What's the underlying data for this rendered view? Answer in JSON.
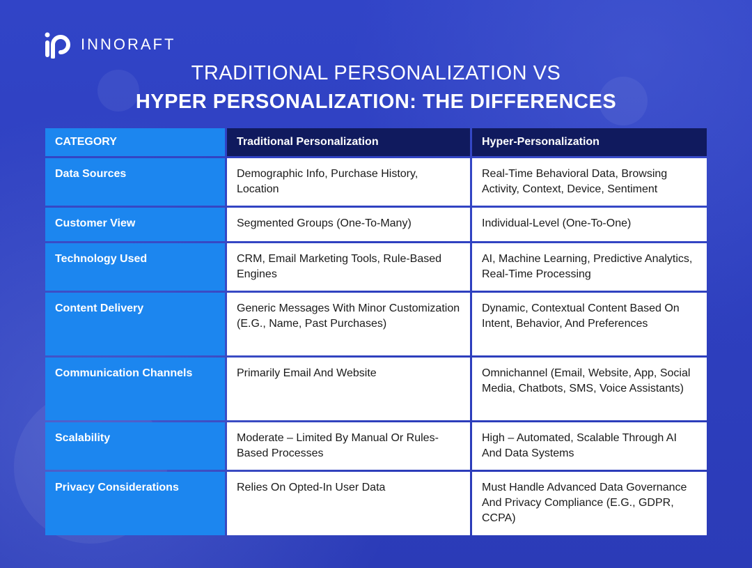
{
  "brand": {
    "name": "INNORAFT"
  },
  "title": {
    "line1": "TRADITIONAL PERSONALIZATION VS",
    "line2": "HYPER PERSONALIZATION: THE DIFFERENCES"
  },
  "table": {
    "headers": [
      "CATEGORY",
      "Traditional Personalization",
      "Hyper-Personalization"
    ],
    "rows": [
      [
        "Data Sources",
        "Demographic Info, Purchase History, Location",
        "Real-Time Behavioral Data, Browsing Activity, Context, Device, Sentiment"
      ],
      [
        "Customer View",
        "Segmented Groups (One-To-Many)",
        "Individual-Level (One-To-One)"
      ],
      [
        "Technology Used",
        "CRM, Email Marketing Tools, Rule-Based Engines",
        "AI, Machine Learning, Predictive Analytics, Real-Time Processing"
      ],
      [
        "Content Delivery",
        "Generic Messages With Minor Customization (E.G., Name, Past Purchases)",
        "Dynamic, Contextual Content Based On Intent, Behavior, And Preferences"
      ],
      [
        "Communication Channels",
        "Primarily Email And Website",
        "Omnichannel (Email, Website, App, Social Media, Chatbots, SMS, Voice Assistants)"
      ],
      [
        "Scalability",
        "Moderate – Limited By Manual Or Rules-Based Processes",
        "High – Automated, Scalable Through AI And Data Systems"
      ],
      [
        "Privacy Considerations",
        "Relies On Opted-In User Data",
        "Must Handle Advanced Data Governance And Privacy Compliance (E.G., GDPR, CCPA)"
      ]
    ]
  },
  "icons": {
    "logo": "innoraft-logo-icon"
  },
  "colors": {
    "background": "#2f3fbf",
    "category_column": "#1c86ef",
    "header_row": "#101a5e",
    "cell_background": "#ffffff"
  }
}
